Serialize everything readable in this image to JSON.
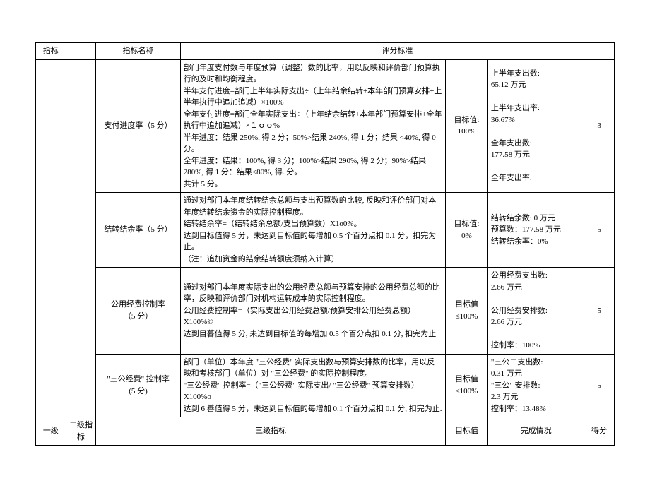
{
  "header": {
    "col1": "指标",
    "col3": "指标名称",
    "col4": "评分标准"
  },
  "rows": [
    {
      "name": "支付进度率（5 分）",
      "criteria": "部门年度支付数与年度预算（调整）数的比率，用以反映和评价部门预算执行的及时和均衡程度。\n半年支付进度=部门上半年实际支出÷（上年结余结转+本年部门预算安排+上半年执行中追加追减）×100%\n全年支付进度=部门全年实际支出÷（上年结余结转+本年部门预算安排+全年执行中追加追减）×１ｏｏ%\n半年进度：结果 250%, 得 2 分；50%>结果 240%, 得 1 分；结果 <40%, 得 0 分。\n全年进度：结果：100%, 得 3 分；100%>结果 290%, 得 2 分；90%>结果 280%, 得 1 分：结果<80%, 得. 分。\n共计 5 分。",
      "target": "目标值:\n100%",
      "status": "上半年支出数:\n65.12 万元\n\n上半年支出率:\n36.67%\n\n全年支出数:\n177.58 万元\n\n全年支出率:",
      "score": "3"
    },
    {
      "name": "结转结余率（5 分）",
      "criteria": "通过对部门本年度结转结余总额与支出预算数的比较, 反映和评价部门对本年度结转结余资金的实际控制程度。\n结转结余率=（结转结余总额/支出预算数）X1o0%。\n达到目标值得 5 分，未达到目标值的每增加 0.5 个百分点扣 0.1 分，扣完为止。\n（注：追加资金的结余结转额度须纳入计算）",
      "target": "目标值:\n0%",
      "status": "结转结余数: 0 万元\n预算数：177.58 万元\n结转结余率：0%",
      "score": "5"
    },
    {
      "name": "公用经费控制率（5 分）",
      "criteria": "通过对部门本年度实际支出的公用经费总额与预算安排的公用经费总额的比率，反映和评价部门对机构运转成本的实际控制程度。\n公用经费控制率=（实际支出公用经费总额/预算安排公用经费总额）X100%©\n达到目暮值得 5 分, 未达到目标值的每增加 0.5 个百分点扣 0.1 分, 扣完为止",
      "target": "目标值\n≤100%",
      "status": "公用经费支出数:\n2.66 万元\n\n公用经费安排数:\n2.66 万元\n\n控制率：100%",
      "score": "5"
    },
    {
      "name": "\"三公经费\" 控制率 (5 分)",
      "criteria": "部门（单位）本年度 \"三公经费\" 实际支出数与预算安排数的比率，用以反映和考核部门（单位）对 \"三公经费\" 的实际控制程度。\n\"三公经费\" 控制率=（\"三公经费\" 实际支出/ \"三公经费\" 预算安排数）X100%o\n达到 6 善值得 5 分，未达到目标值的每增加 0.1 个百分点扣 0.1 分, 扣完为止.",
      "target": "目标值\n≤100%",
      "status": "\"三公二支出数:\n0.31 万元\n\"三公\" 安排数:\n2.3 万元\n控制率：13.48%",
      "score": "5"
    }
  ],
  "footer": {
    "c1": "一级",
    "c2": "二级指标",
    "c3": "三级指标",
    "c4": "目标值",
    "c5": "完成情况",
    "c6": "得分"
  }
}
